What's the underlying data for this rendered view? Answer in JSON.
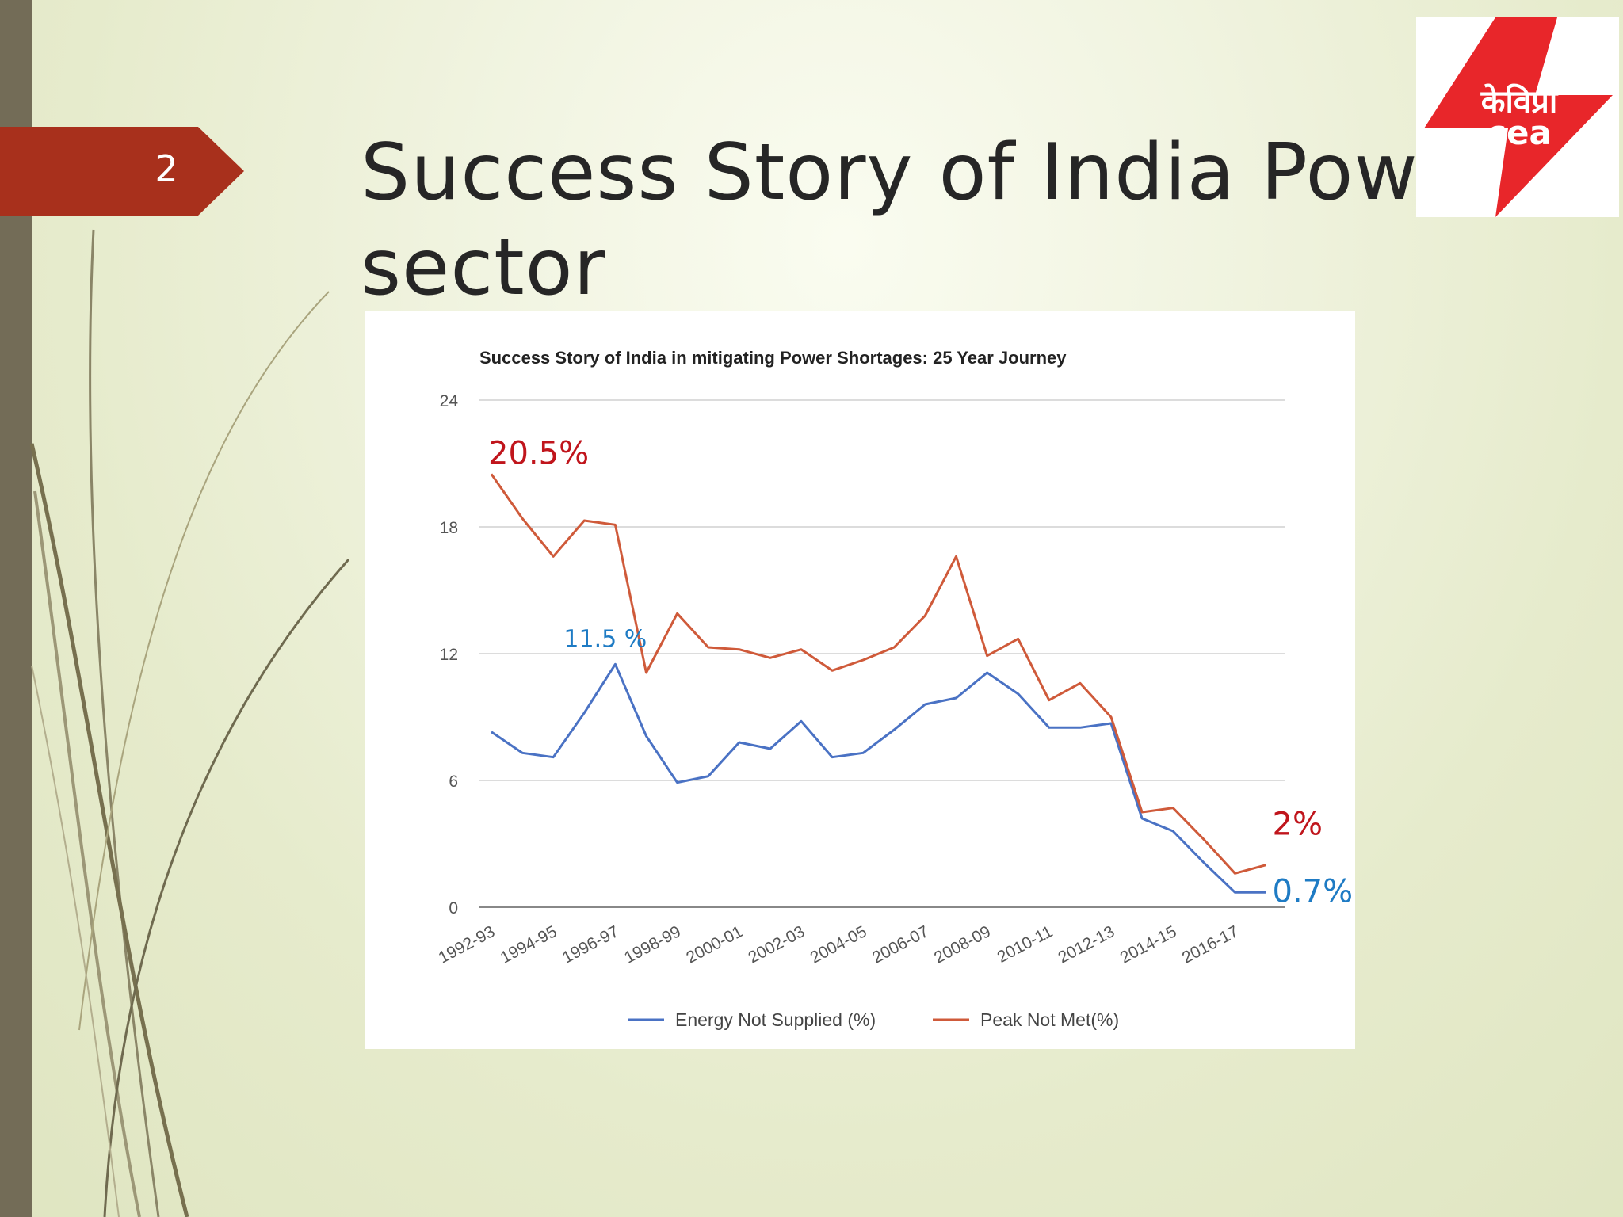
{
  "slide": {
    "number": "2",
    "title": "Success Story of India Power sector",
    "logo": {
      "hindi_text": "केविप्रा",
      "latin_text": "cea",
      "color": "#e8262a"
    }
  },
  "colors": {
    "accent_tab": "#a8301c",
    "left_bar": "#736c57",
    "series_energy": "#4a72c4",
    "series_peak": "#cf5a3a",
    "annotation_red": "#c0151c",
    "annotation_blue": "#1e7bc4"
  },
  "chart_data": {
    "type": "line",
    "title": "Success Story of India in mitigating Power Shortages: 25 Year Journey",
    "ylim": [
      0,
      24
    ],
    "yticks": [
      0,
      6,
      12,
      18,
      24
    ],
    "grid": true,
    "legend_position": "bottom",
    "x": [
      "1992-93",
      "1993-94",
      "1994-95",
      "1995-96",
      "1996-97",
      "1997-98",
      "1998-99",
      "1999-00",
      "2000-01",
      "2001-02",
      "2002-03",
      "2003-04",
      "2004-05",
      "2005-06",
      "2006-07",
      "2007-08",
      "2008-09",
      "2009-10",
      "2010-11",
      "2011-12",
      "2012-13",
      "2013-14",
      "2014-15",
      "2015-16",
      "2016-17",
      "2017-18"
    ],
    "x_tick_labels": [
      "1992-93",
      "1994-95",
      "1996-97",
      "1998-99",
      "2000-01",
      "2002-03",
      "2004-05",
      "2006-07",
      "2008-09",
      "2010-11",
      "2012-13",
      "2014-15",
      "2016-17"
    ],
    "series": [
      {
        "name": "Energy Not Supplied (%)",
        "color": "#4a72c4",
        "values": [
          8.3,
          7.3,
          7.1,
          9.2,
          11.5,
          8.1,
          5.9,
          6.2,
          7.8,
          7.5,
          8.8,
          7.1,
          7.3,
          8.4,
          9.6,
          9.9,
          11.1,
          10.1,
          8.5,
          8.5,
          8.7,
          4.2,
          3.6,
          2.1,
          0.7,
          0.7
        ]
      },
      {
        "name": "Peak Not Met(%)",
        "color": "#cf5a3a",
        "values": [
          20.5,
          18.4,
          16.6,
          18.3,
          18.1,
          11.1,
          13.9,
          12.3,
          12.2,
          11.8,
          12.2,
          11.2,
          11.7,
          12.3,
          13.8,
          16.6,
          11.9,
          12.7,
          9.8,
          10.6,
          9.0,
          4.5,
          4.7,
          3.2,
          1.6,
          2.0
        ]
      }
    ],
    "annotations": [
      {
        "text": "20.5%",
        "series": "Peak Not Met(%)",
        "x": "1992-93",
        "y": 20.5,
        "color": "#c0151c"
      },
      {
        "text": "11.5 %",
        "series": "Energy Not Supplied (%)",
        "x": "1996-97",
        "y": 11.5,
        "color": "#1e7bc4"
      },
      {
        "text": "2%",
        "series": "Peak Not Met(%)",
        "x": "2017-18",
        "y": 2.0,
        "color": "#c0151c"
      },
      {
        "text": "0.7%",
        "series": "Energy Not Supplied (%)",
        "x": "2017-18",
        "y": 0.7,
        "color": "#1e7bc4"
      }
    ]
  }
}
